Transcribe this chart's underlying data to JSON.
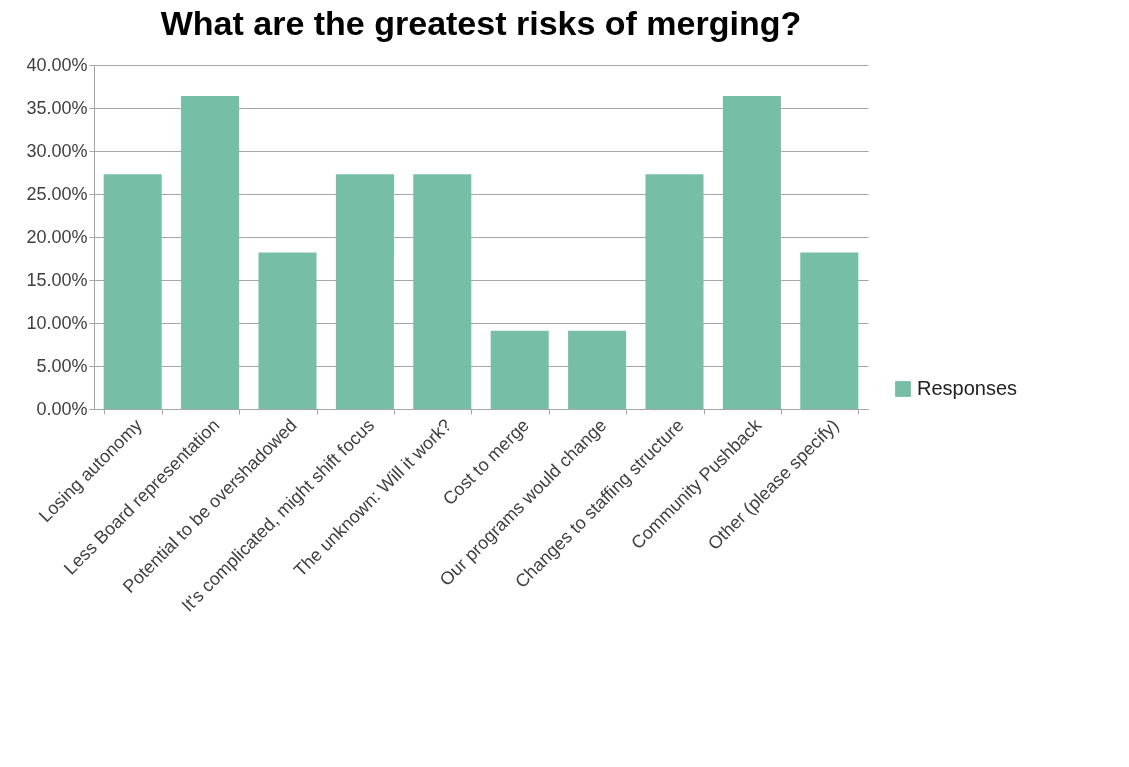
{
  "chart_data": {
    "type": "bar",
    "title": "What are the greatest risks of merging?",
    "categories": [
      "Losing autonomy",
      "Less Board representation",
      "Potential to be overshadowed",
      "It's complicated, might shift focus",
      "The unknown: Will it work?",
      "Cost to merge",
      "Our programs would change",
      "Changes to staffing structure",
      "Community Pushback",
      "Other (please specify)"
    ],
    "series": [
      {
        "name": "Responses",
        "color": "#76bfa6",
        "values": [
          27.3,
          36.4,
          18.2,
          27.3,
          27.3,
          9.1,
          9.1,
          27.3,
          36.4,
          18.2
        ]
      }
    ],
    "ylim": [
      0,
      40
    ],
    "yticks": [
      {
        "value": 0,
        "label": "0.00%"
      },
      {
        "value": 5,
        "label": "5.00%"
      },
      {
        "value": 10,
        "label": "10.00%"
      },
      {
        "value": 15,
        "label": "15.00%"
      },
      {
        "value": 20,
        "label": "20.00%"
      },
      {
        "value": 25,
        "label": "25.00%"
      },
      {
        "value": 30,
        "label": "30.00%"
      },
      {
        "value": 35,
        "label": "35.00%"
      },
      {
        "value": 40,
        "label": "40.00%"
      }
    ],
    "grid": "y",
    "legend": "right"
  }
}
